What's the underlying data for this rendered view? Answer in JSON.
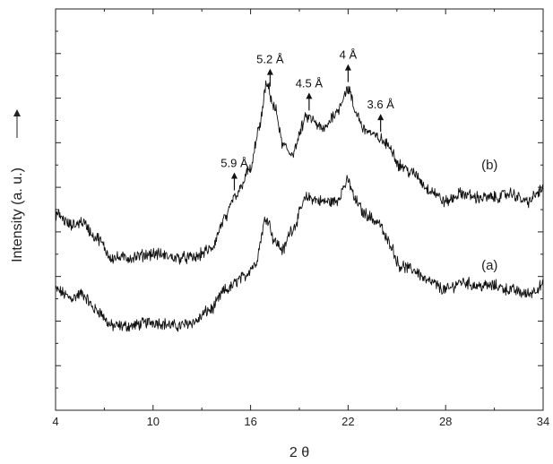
{
  "chart_data": {
    "type": "line",
    "xlabel": "2 θ",
    "ylabel": "Intensity (a. u.)",
    "xlim": [
      4,
      34
    ],
    "x_ticks": [
      4,
      10,
      16,
      22,
      28,
      34
    ],
    "y_ticks_shown": false,
    "grid": false,
    "series": [
      {
        "name": "(a)",
        "x": [
          4,
          5,
          5.6,
          6.5,
          7.5,
          8.5,
          10,
          11.5,
          12.5,
          13.5,
          14.5,
          15.5,
          16.2,
          17,
          17.5,
          18,
          18.5,
          19.5,
          20.5,
          21.2,
          22,
          22.5,
          23,
          23.8,
          24.5,
          25.2,
          26,
          27,
          28,
          29,
          30,
          31,
          32,
          33,
          34
        ],
        "y": [
          30,
          28,
          29,
          25,
          21,
          21,
          22,
          21,
          22,
          25,
          30,
          33,
          36,
          48,
          42,
          40,
          45,
          53,
          52,
          52,
          57,
          52,
          49,
          47,
          42,
          36,
          35,
          32,
          30,
          32,
          31,
          31,
          30,
          29,
          31
        ]
      },
      {
        "name": "(b)",
        "x": [
          4,
          5,
          5.6,
          6.5,
          7.5,
          8.5,
          10,
          11.5,
          12.5,
          13.5,
          14.5,
          15,
          16,
          16.5,
          17,
          17.5,
          18,
          18.5,
          19.5,
          20.5,
          21.2,
          22,
          22.5,
          23,
          23.8,
          24.5,
          25.2,
          26,
          27,
          28,
          29,
          30,
          31,
          32,
          33,
          34
        ],
        "y": [
          49,
          46,
          47,
          43,
          38,
          38,
          39,
          38,
          38,
          40,
          48,
          53,
          60,
          70,
          81,
          75,
          66,
          64,
          73,
          70,
          74,
          80,
          74,
          70,
          68,
          66,
          61,
          59,
          55,
          52,
          54,
          53,
          53,
          54,
          52,
          55
        ]
      }
    ],
    "annotations": [
      {
        "label": "5.9 Å",
        "x": 15.0
      },
      {
        "label": "5.2 Å",
        "x": 17.2
      },
      {
        "label": "4.5 Å",
        "x": 19.6
      },
      {
        "label": "4 Å",
        "x": 22.0
      },
      {
        "label": "3.6 Å",
        "x": 24.0
      }
    ]
  }
}
